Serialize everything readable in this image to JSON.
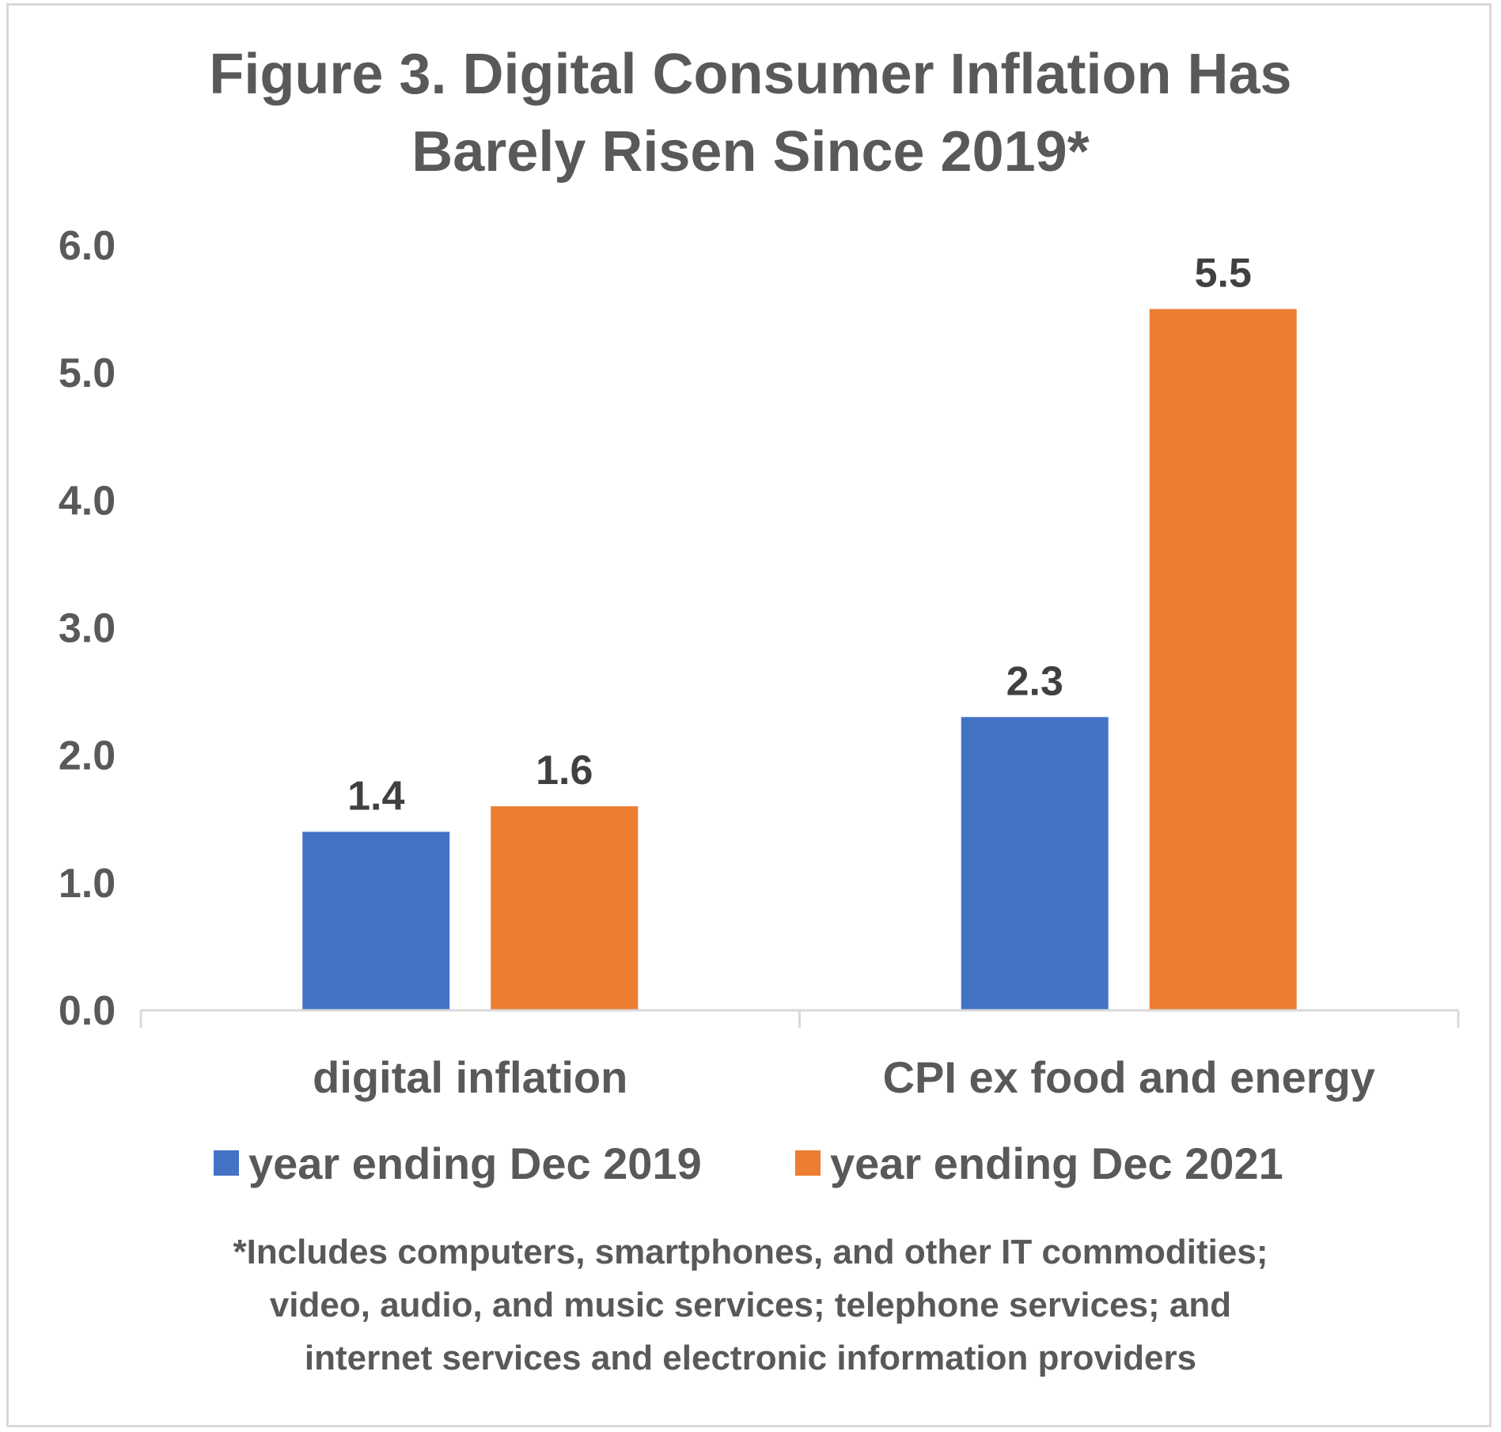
{
  "chart_data": {
    "type": "bar",
    "title_lines": [
      "Figure 3. Digital Consumer Inflation Has",
      "Barely Risen Since 2019*"
    ],
    "categories": [
      "digital inflation",
      "CPI ex food and energy"
    ],
    "series": [
      {
        "name": "year ending Dec 2019",
        "color": "#4472c4",
        "values": [
          1.4,
          2.3
        ],
        "labels": [
          "1.4",
          "2.3"
        ]
      },
      {
        "name": "year ending Dec 2021",
        "color": "#ed7d31",
        "values": [
          1.6,
          5.5
        ],
        "labels": [
          "1.6",
          "5.5"
        ]
      }
    ],
    "ylim": [
      0,
      6
    ],
    "yticks": [
      "0.0",
      "1.0",
      "2.0",
      "3.0",
      "4.0",
      "5.0",
      "6.0"
    ],
    "xlabel": "",
    "ylabel": "",
    "grid": false,
    "legend_position": "bottom",
    "footnote_lines": [
      "*Includes computers, smartphones, and other IT commodities;",
      "video, audio, and music services; telephone services; and",
      "internet services and electronic information providers"
    ]
  }
}
